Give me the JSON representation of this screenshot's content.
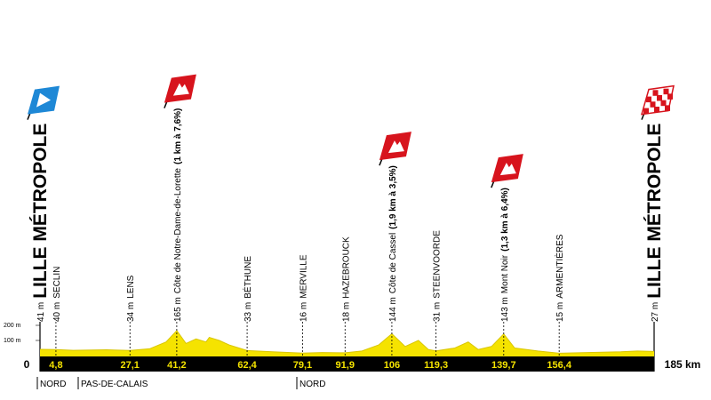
{
  "chart_data": {
    "type": "area",
    "color": "#f5e300",
    "x": [
      0,
      4.8,
      10,
      20,
      27.1,
      33,
      38,
      41.2,
      44,
      47,
      50,
      51,
      54,
      57,
      62.4,
      70,
      79.1,
      85,
      91.9,
      97,
      102,
      106,
      110,
      114,
      117,
      119.3,
      125,
      129,
      132,
      136,
      139.7,
      143,
      150,
      156.4,
      165,
      175,
      180,
      185
    ],
    "values": [
      41,
      40,
      35,
      38,
      34,
      45,
      90,
      165,
      80,
      110,
      90,
      120,
      100,
      70,
      33,
      25,
      16,
      20,
      18,
      30,
      70,
      144,
      60,
      100,
      40,
      31,
      50,
      90,
      40,
      60,
      143,
      50,
      30,
      15,
      20,
      25,
      30,
      27
    ],
    "xlim": [
      0,
      185
    ],
    "ylim": [
      0,
      200
    ],
    "yticks": [
      {
        "value": 100,
        "label": "100 m"
      },
      {
        "value": 200,
        "label": "200 m"
      }
    ],
    "waypoints": [
      {
        "km": 0,
        "altitude": "41 m",
        "name": "LILLE MÉTROPOLE",
        "icon": "start"
      },
      {
        "km": {
          "value": 4.8,
          "label": "4,8"
        },
        "altitude": "40 m",
        "name": "SECLIN"
      },
      {
        "km": {
          "value": 27.1,
          "label": "27,1"
        },
        "altitude": "34 m",
        "name": "LENS"
      },
      {
        "km": {
          "value": 41.2,
          "label": "41,2"
        },
        "altitude": "165 m",
        "name": "Côte de Notre-Dame-de-Lorette",
        "detail": "(1 km à 7,6%)",
        "icon": "climb"
      },
      {
        "km": {
          "value": 62.4,
          "label": "62,4"
        },
        "altitude": "33 m",
        "name": "BÉTHUNE"
      },
      {
        "km": {
          "value": 79.1,
          "label": "79,1"
        },
        "altitude": "16 m",
        "name": "MERVILLE"
      },
      {
        "km": {
          "value": 91.9,
          "label": "91,9"
        },
        "altitude": "18 m",
        "name": "HAZEBROUCK"
      },
      {
        "km": 106,
        "altitude": "144 m",
        "name": "Côte de Cassel",
        "detail": "(1,9 km à 3,5%)",
        "icon": "climb"
      },
      {
        "km": {
          "value": 119.3,
          "label": "119,3"
        },
        "altitude": "31 m",
        "name": "STEENVOORDE"
      },
      {
        "km": {
          "value": 139.7,
          "label": "139,7"
        },
        "altitude": "143 m",
        "name": "Mont Noir",
        "detail": "(1,3 km à 6,4%)",
        "icon": "climb"
      },
      {
        "km": {
          "value": 156.4,
          "label": "156,4"
        },
        "altitude": "15 m",
        "name": "ARMENTIÈRES"
      },
      {
        "km": {
          "value": 185,
          "label": "185 km"
        },
        "altitude": "27 m",
        "name": "LILLE MÉTROPOLE",
        "icon": "finish"
      }
    ],
    "regions": [
      "NORD",
      "PAS-DE-CALAIS",
      "NORD"
    ]
  }
}
